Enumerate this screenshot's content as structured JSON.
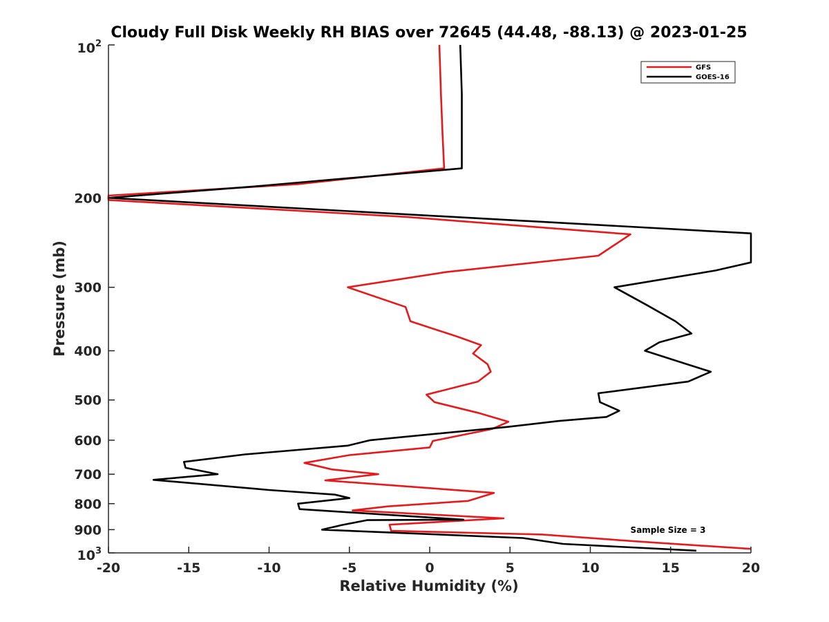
{
  "chart_data": {
    "type": "line",
    "title": "Cloudy Full Disk Weekly RH BIAS over 72645 (44.48, -88.13) @ 2023-01-25",
    "xlabel": "Relative Humidity (%)",
    "ylabel": "Pressure (mb)",
    "xlim": [
      -20,
      20
    ],
    "ylim": [
      100,
      1000
    ],
    "y_scale": "log",
    "y_reversed": true,
    "grid": false,
    "legend_position": "top-right",
    "x_ticks": [
      -20,
      -15,
      -10,
      -5,
      0,
      5,
      10,
      15,
      20
    ],
    "x_tick_labels": [
      "-20",
      "-15",
      "-10",
      "-5",
      "0",
      "5",
      "10",
      "15",
      "20"
    ],
    "y_ticks": [
      200,
      300,
      400,
      500,
      600,
      700,
      800,
      900
    ],
    "y_tick_labels": [
      "200",
      "300",
      "400",
      "500",
      "600",
      "700",
      "800",
      "900"
    ],
    "y_min_label": {
      "base": "10",
      "exp": "2"
    },
    "y_max_label": {
      "base": "10",
      "exp": "3"
    },
    "annotation": "Sample Size = 3",
    "series": [
      {
        "name": "GFS",
        "color": "#e41a1c",
        "points": [
          {
            "x": 0.6,
            "y": 100
          },
          {
            "x": 0.7,
            "y": 125
          },
          {
            "x": 0.8,
            "y": 150
          },
          {
            "x": 0.9,
            "y": 175
          },
          {
            "x": -8.2,
            "y": 188
          },
          {
            "x": -20.0,
            "y": 198
          },
          {
            "x": -20.0,
            "y": 202
          },
          {
            "x": -1.5,
            "y": 218
          },
          {
            "x": 12.5,
            "y": 236
          },
          {
            "x": 10.5,
            "y": 260
          },
          {
            "x": 1.0,
            "y": 280
          },
          {
            "x": -5.1,
            "y": 300
          },
          {
            "x": -1.5,
            "y": 328
          },
          {
            "x": -1.2,
            "y": 350
          },
          {
            "x": 1.7,
            "y": 375
          },
          {
            "x": 3.2,
            "y": 390
          },
          {
            "x": 2.7,
            "y": 405
          },
          {
            "x": 3.6,
            "y": 425
          },
          {
            "x": 3.8,
            "y": 440
          },
          {
            "x": 3.0,
            "y": 460
          },
          {
            "x": -0.2,
            "y": 488
          },
          {
            "x": 0.3,
            "y": 505
          },
          {
            "x": 3.0,
            "y": 530
          },
          {
            "x": 4.9,
            "y": 552
          },
          {
            "x": 3.9,
            "y": 570
          },
          {
            "x": 0.2,
            "y": 602
          },
          {
            "x": 0.0,
            "y": 620
          },
          {
            "x": -5.0,
            "y": 642
          },
          {
            "x": -7.8,
            "y": 665
          },
          {
            "x": -6.1,
            "y": 685
          },
          {
            "x": -3.2,
            "y": 700
          },
          {
            "x": -6.5,
            "y": 720
          },
          {
            "x": 4.0,
            "y": 762
          },
          {
            "x": 2.4,
            "y": 790
          },
          {
            "x": -2.6,
            "y": 810
          },
          {
            "x": -4.8,
            "y": 825
          },
          {
            "x": 4.6,
            "y": 855
          },
          {
            "x": -2.5,
            "y": 880
          },
          {
            "x": -2.4,
            "y": 905
          },
          {
            "x": 7.0,
            "y": 920
          },
          {
            "x": 13.0,
            "y": 950
          },
          {
            "x": 20.0,
            "y": 982
          }
        ]
      },
      {
        "name": "GOES-16",
        "color": "#000000",
        "points": [
          {
            "x": 1.9,
            "y": 100
          },
          {
            "x": 2.0,
            "y": 125
          },
          {
            "x": 2.0,
            "y": 150
          },
          {
            "x": 2.0,
            "y": 175
          },
          {
            "x": -11.0,
            "y": 190
          },
          {
            "x": -20.0,
            "y": 200
          },
          {
            "x": 20.0,
            "y": 235
          },
          {
            "x": 20.0,
            "y": 268
          },
          {
            "x": 17.8,
            "y": 278
          },
          {
            "x": 11.5,
            "y": 300
          },
          {
            "x": 13.5,
            "y": 325
          },
          {
            "x": 15.3,
            "y": 350
          },
          {
            "x": 16.3,
            "y": 370
          },
          {
            "x": 14.3,
            "y": 385
          },
          {
            "x": 13.4,
            "y": 400
          },
          {
            "x": 16.0,
            "y": 425
          },
          {
            "x": 17.5,
            "y": 440
          },
          {
            "x": 16.1,
            "y": 460
          },
          {
            "x": 10.5,
            "y": 485
          },
          {
            "x": 10.6,
            "y": 505
          },
          {
            "x": 11.8,
            "y": 525
          },
          {
            "x": 11.0,
            "y": 540
          },
          {
            "x": 8.0,
            "y": 550
          },
          {
            "x": 4.8,
            "y": 565
          },
          {
            "x": -3.7,
            "y": 600
          },
          {
            "x": -5.1,
            "y": 615
          },
          {
            "x": -11.5,
            "y": 640
          },
          {
            "x": -15.3,
            "y": 662
          },
          {
            "x": -15.2,
            "y": 680
          },
          {
            "x": -13.2,
            "y": 700
          },
          {
            "x": -17.2,
            "y": 718
          },
          {
            "x": -10.0,
            "y": 752
          },
          {
            "x": -5.9,
            "y": 768
          },
          {
            "x": -5.0,
            "y": 780
          },
          {
            "x": -8.2,
            "y": 800
          },
          {
            "x": -8.1,
            "y": 820
          },
          {
            "x": 2.1,
            "y": 860
          },
          {
            "x": -3.9,
            "y": 862
          },
          {
            "x": -5.5,
            "y": 882
          },
          {
            "x": -6.7,
            "y": 900
          },
          {
            "x": 5.8,
            "y": 935
          },
          {
            "x": 8.3,
            "y": 960
          },
          {
            "x": 16.6,
            "y": 990
          }
        ]
      }
    ]
  }
}
